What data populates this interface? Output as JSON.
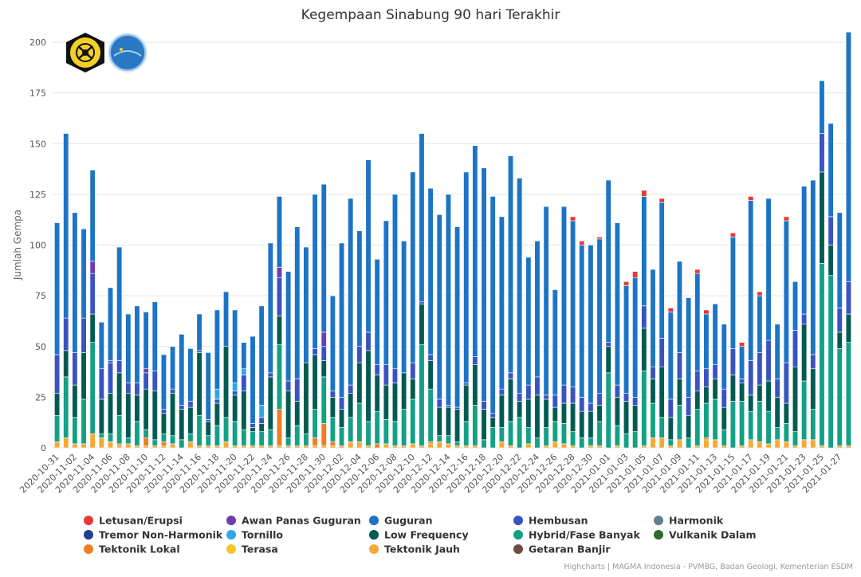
{
  "chart_data": {
    "type": "bar",
    "stacked": true,
    "title": "Kegempaan Sinabung 90 hari Terakhir",
    "ylabel": "Jumlah Gempa",
    "ylim": [
      0,
      200
    ],
    "yticks": [
      0,
      25,
      50,
      75,
      100,
      125,
      150,
      175,
      200
    ],
    "grid": true,
    "legend_position": "bottom",
    "credits": "Highcharts | MAGMA Indonesia - PVMBG, Badan Geologi, Kementerian ESDM",
    "logos": [
      "badan-geologi-seal",
      "magma-logo"
    ],
    "x": [
      "2020-10-31",
      "2020-11-01",
      "2020-11-02",
      "2020-11-03",
      "2020-11-04",
      "2020-11-05",
      "2020-11-06",
      "2020-11-07",
      "2020-11-08",
      "2020-11-09",
      "2020-11-10",
      "2020-11-11",
      "2020-11-12",
      "2020-11-13",
      "2020-11-14",
      "2020-11-15",
      "2020-11-16",
      "2020-11-17",
      "2020-11-18",
      "2020-11-19",
      "2020-11-20",
      "2020-11-21",
      "2020-11-22",
      "2020-11-23",
      "2020-11-24",
      "2020-11-25",
      "2020-11-26",
      "2020-11-27",
      "2020-11-28",
      "2020-11-29",
      "2020-11-30",
      "2020-12-01",
      "2020-12-02",
      "2020-12-03",
      "2020-12-04",
      "2020-12-05",
      "2020-12-06",
      "2020-12-07",
      "2020-12-08",
      "2020-12-09",
      "2020-12-10",
      "2020-12-11",
      "2020-12-12",
      "2020-12-13",
      "2020-12-14",
      "2020-12-15",
      "2020-12-16",
      "2020-12-17",
      "2020-12-18",
      "2020-12-19",
      "2020-12-20",
      "2020-12-21",
      "2020-12-22",
      "2020-12-23",
      "2020-12-24",
      "2020-12-25",
      "2020-12-26",
      "2020-12-27",
      "2020-12-28",
      "2020-12-29",
      "2020-12-30",
      "2020-12-31",
      "2021-01-01",
      "2021-01-02",
      "2021-01-03",
      "2021-01-04",
      "2021-01-05",
      "2021-01-06",
      "2021-01-07",
      "2021-01-08",
      "2021-01-09",
      "2021-01-10",
      "2021-01-11",
      "2021-01-12",
      "2021-01-13",
      "2021-01-14",
      "2021-01-15",
      "2021-01-16",
      "2021-01-17",
      "2021-01-18",
      "2021-01-19",
      "2021-01-20",
      "2021-01-21",
      "2021-01-22",
      "2021-01-23",
      "2021-01-24",
      "2021-01-25",
      "2021-01-26",
      "2021-01-27",
      "2021-01-28"
    ],
    "xtick_labels": [
      "2020-10-31",
      "2020-11-02",
      "2020-11-04",
      "2020-11-06",
      "2020-11-08",
      "2020-11-10",
      "2020-11-12",
      "2020-11-14",
      "2020-11-16",
      "2020-11-18",
      "2020-11-20",
      "2020-11-22",
      "2020-11-24",
      "2020-11-26",
      "2020-11-28",
      "2020-11-30",
      "2020-12-02",
      "2020-12-04",
      "2020-12-06",
      "2020-12-08",
      "2020-12-10",
      "2020-12-12",
      "2020-12-14",
      "2020-12-16",
      "2020-12-18",
      "2020-12-20",
      "2020-12-22",
      "2020-12-24",
      "2020-12-26",
      "2020-12-28",
      "2020-12-30",
      "2021-01-01",
      "2021-01-03",
      "2021-01-05",
      "2021-01-07",
      "2021-01-09",
      "2021-01-11",
      "2021-01-13",
      "2021-01-15",
      "2021-01-17",
      "2021-01-19",
      "2021-01-21",
      "2021-01-23",
      "2021-01-25",
      "2021-01-27"
    ],
    "series": [
      {
        "name": "Tektonik Jauh",
        "color": "#f7a935",
        "values": [
          3,
          5,
          2,
          2,
          7,
          5,
          3,
          1,
          2,
          1,
          1,
          1,
          1,
          2,
          0,
          3,
          1,
          1,
          1,
          3,
          1,
          1,
          1,
          1,
          1,
          1,
          1,
          1,
          1,
          1,
          1,
          1,
          1,
          3,
          3,
          1,
          0,
          2,
          1,
          1,
          2,
          1,
          2,
          3,
          2,
          1,
          1,
          1,
          0,
          0,
          3,
          1,
          0,
          2,
          0,
          1,
          3,
          2,
          1,
          0,
          1,
          1,
          0,
          1,
          0,
          0,
          1,
          5,
          5,
          1,
          4,
          0,
          1,
          4,
          4,
          1,
          0,
          1,
          4,
          3,
          2,
          4,
          3,
          1,
          4,
          4,
          1,
          0,
          1,
          1
        ]
      },
      {
        "name": "Tektonik Lokal",
        "color": "#ef7d21",
        "values": [
          0,
          0,
          0,
          0,
          0,
          0,
          0,
          1,
          0,
          0,
          4,
          0,
          2,
          0,
          0,
          0,
          0,
          0,
          0,
          0,
          0,
          0,
          0,
          0,
          0,
          18,
          0,
          0,
          0,
          4,
          11,
          2,
          0,
          0,
          0,
          0,
          2,
          0,
          0,
          0,
          0,
          0,
          1,
          0,
          0,
          0,
          0,
          0,
          0,
          0,
          0,
          0,
          0,
          0,
          0,
          0,
          0,
          0,
          0,
          0,
          0,
          0,
          0,
          0,
          0,
          0,
          0,
          0,
          0,
          0,
          0,
          0,
          0,
          1,
          0,
          0,
          0,
          0,
          0,
          0,
          0,
          0,
          0,
          0,
          0,
          0,
          0,
          0,
          0,
          0
        ]
      },
      {
        "name": "Hybrid/Fase Banyak",
        "color": "#13a085",
        "values": [
          13,
          30,
          13,
          22,
          45,
          2,
          4,
          14,
          3,
          12,
          4,
          3,
          4,
          4,
          4,
          4,
          15,
          5,
          10,
          12,
          12,
          8,
          7,
          7,
          8,
          32,
          4,
          10,
          6,
          14,
          23,
          12,
          9,
          12,
          19,
          12,
          16,
          12,
          12,
          18,
          22,
          50,
          26,
          3,
          4,
          2,
          12,
          20,
          4,
          10,
          7,
          12,
          15,
          8,
          5,
          9,
          10,
          10,
          7,
          5,
          4,
          12,
          37,
          10,
          7,
          8,
          37,
          17,
          10,
          3,
          17,
          5,
          18,
          17,
          20,
          8,
          23,
          22,
          14,
          20,
          16,
          6,
          9,
          7,
          29,
          15,
          90,
          85,
          48,
          51
        ]
      },
      {
        "name": "Low Frequency",
        "color": "#025b52",
        "values": [
          11,
          13,
          16,
          23,
          14,
          17,
          20,
          21,
          22,
          13,
          20,
          24,
          10,
          21,
          15,
          13,
          31,
          7,
          11,
          35,
          13,
          19,
          2,
          4,
          26,
          14,
          23,
          12,
          35,
          27,
          8,
          10,
          9,
          12,
          20,
          35,
          18,
          17,
          19,
          18,
          10,
          20,
          14,
          14,
          14,
          16,
          18,
          20,
          15,
          5,
          16,
          21,
          8,
          14,
          21,
          14,
          7,
          10,
          14,
          13,
          13,
          8,
          13,
          14,
          16,
          13,
          21,
          12,
          25,
          11,
          13,
          11,
          9,
          8,
          10,
          11,
          13,
          9,
          8,
          8,
          15,
          15,
          10,
          32,
          28,
          20,
          45,
          15,
          8,
          14
        ]
      },
      {
        "name": "Hembusan",
        "color": "#3a53c2",
        "values": [
          19,
          16,
          16,
          17,
          20,
          15,
          15,
          6,
          5,
          6,
          8,
          10,
          2,
          2,
          2,
          3,
          1,
          1,
          2,
          0,
          2,
          8,
          2,
          3,
          2,
          19,
          5,
          11,
          0,
          3,
          7,
          3,
          6,
          4,
          8,
          9,
          5,
          10,
          7,
          0,
          8,
          1,
          3,
          4,
          1,
          1,
          1,
          4,
          4,
          2,
          3,
          3,
          4,
          7,
          9,
          2,
          6,
          9,
          8,
          7,
          4,
          6,
          2,
          6,
          4,
          4,
          11,
          6,
          14,
          9,
          13,
          9,
          10,
          9,
          7,
          9,
          13,
          2,
          17,
          16,
          20,
          9,
          20,
          18,
          5,
          7,
          19,
          14,
          12,
          16
        ]
      },
      {
        "name": "Awan Panas Guguran",
        "color": "#6a3fad",
        "values": [
          0,
          0,
          0,
          0,
          6,
          0,
          1,
          0,
          0,
          0,
          2,
          0,
          0,
          0,
          0,
          0,
          0,
          0,
          0,
          0,
          0,
          0,
          0,
          0,
          0,
          5,
          0,
          0,
          0,
          0,
          7,
          0,
          0,
          0,
          0,
          0,
          0,
          0,
          0,
          0,
          0,
          0,
          0,
          0,
          0,
          0,
          0,
          0,
          0,
          0,
          0,
          0,
          0,
          0,
          0,
          0,
          0,
          0,
          0,
          0,
          0,
          0,
          0,
          0,
          0,
          0,
          0,
          0,
          0,
          0,
          0,
          0,
          0,
          0,
          0,
          0,
          0,
          0,
          0,
          0,
          0,
          0,
          0,
          0,
          0,
          0,
          0,
          0,
          0,
          0
        ]
      },
      {
        "name": "Tornillo",
        "color": "#2da9e1",
        "values": [
          0,
          0,
          0,
          0,
          0,
          0,
          0,
          0,
          0,
          0,
          0,
          0,
          0,
          0,
          0,
          0,
          0,
          0,
          5,
          0,
          4,
          3,
          0,
          6,
          0,
          0,
          0,
          0,
          0,
          0,
          0,
          0,
          0,
          0,
          0,
          0,
          0,
          0,
          0,
          0,
          0,
          0,
          0,
          0,
          0,
          0,
          0,
          0,
          0,
          0,
          0,
          0,
          0,
          0,
          0,
          0,
          0,
          0,
          0,
          0,
          0,
          0,
          0,
          0,
          0,
          0,
          0,
          0,
          0,
          0,
          0,
          0,
          0,
          0,
          0,
          0,
          0,
          0,
          0,
          0,
          0,
          0,
          0,
          0,
          0,
          0,
          0,
          0,
          0,
          0
        ]
      },
      {
        "name": "Guguran",
        "color": "#1c74c6",
        "values": [
          65,
          91,
          69,
          44,
          45,
          23,
          36,
          56,
          34,
          38,
          28,
          34,
          27,
          21,
          35,
          26,
          18,
          33,
          39,
          27,
          36,
          13,
          43,
          49,
          64,
          35,
          54,
          75,
          57,
          76,
          73,
          47,
          76,
          92,
          57,
          85,
          52,
          71,
          86,
          65,
          94,
          83,
          82,
          91,
          104,
          89,
          104,
          104,
          115,
          107,
          85,
          107,
          106,
          63,
          67,
          93,
          52,
          88,
          82,
          75,
          78,
          76,
          80,
          80,
          53,
          59,
          54,
          48,
          67,
          43,
          45,
          49,
          48,
          27,
          30,
          32,
          55,
          16,
          79,
          28,
          70,
          27,
          70,
          24,
          63,
          86,
          26,
          46,
          47,
          123
        ]
      },
      {
        "name": "Letusan/Erupsi",
        "color": "#e53935",
        "values": [
          0,
          0,
          0,
          0,
          0,
          0,
          0,
          0,
          0,
          0,
          0,
          0,
          0,
          0,
          0,
          0,
          0,
          0,
          0,
          0,
          0,
          0,
          0,
          0,
          0,
          0,
          0,
          0,
          0,
          0,
          0,
          0,
          0,
          0,
          0,
          0,
          0,
          0,
          0,
          0,
          0,
          0,
          0,
          0,
          0,
          0,
          0,
          0,
          0,
          0,
          0,
          0,
          0,
          0,
          0,
          0,
          0,
          0,
          2,
          2,
          0,
          1,
          0,
          0,
          2,
          3,
          3,
          0,
          2,
          2,
          0,
          0,
          2,
          2,
          0,
          0,
          2,
          2,
          2,
          2,
          0,
          0,
          2,
          0,
          0,
          0,
          0,
          0,
          0,
          0
        ]
      }
    ],
    "legend": [
      {
        "name": "Letusan/Erupsi",
        "color": "#e53935"
      },
      {
        "name": "Awan Panas Guguran",
        "color": "#6a3fad"
      },
      {
        "name": "Guguran",
        "color": "#1c74c6"
      },
      {
        "name": "Hembusan",
        "color": "#3a53c2"
      },
      {
        "name": "Harmonik",
        "color": "#5f7f8c"
      },
      {
        "name": "Tremor Non-Harmonik",
        "color": "#1f3f8f"
      },
      {
        "name": "Tornillo",
        "color": "#2da9e1"
      },
      {
        "name": "Low Frequency",
        "color": "#025b52"
      },
      {
        "name": "Hybrid/Fase Banyak",
        "color": "#13a085"
      },
      {
        "name": "Vulkanik Dalam",
        "color": "#2e6b2e"
      },
      {
        "name": "Tektonik Lokal",
        "color": "#ef7d21"
      },
      {
        "name": "Terasa",
        "color": "#f4c629"
      },
      {
        "name": "Tektonik Jauh",
        "color": "#f7a935"
      },
      {
        "name": "Getaran Banjir",
        "color": "#6d4c41"
      }
    ]
  }
}
